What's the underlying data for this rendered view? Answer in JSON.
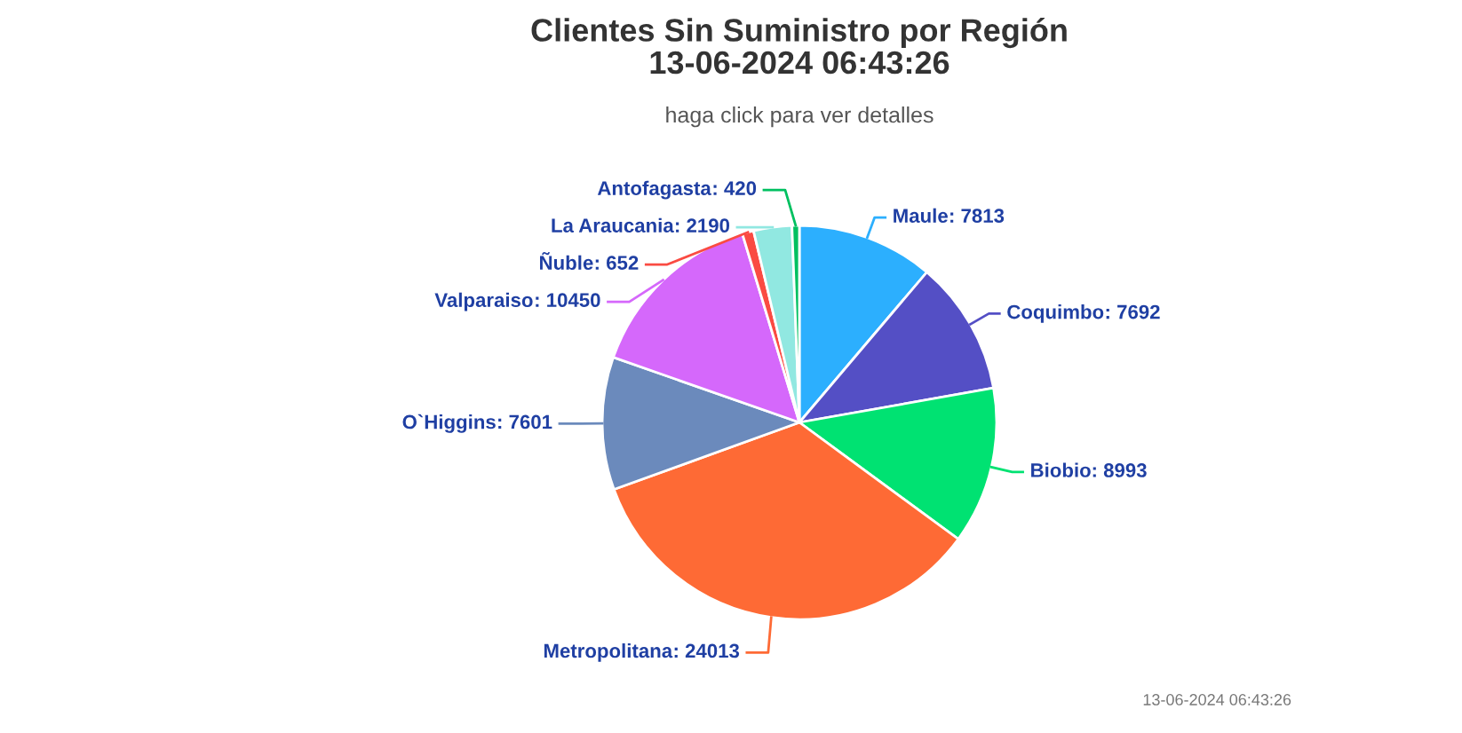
{
  "chart_data": {
    "type": "pie",
    "title": "Clientes Sin Suministro por Región\n13-06-2024 06:43:26",
    "subtitle": "haga click para ver detalles",
    "categories": [
      "Maule",
      "Coquimbo",
      "Biobio",
      "Metropolitana",
      "O`Higgins",
      "Valparaiso",
      "Ñuble",
      "La Araucania",
      "Antofagasta"
    ],
    "values": [
      7813,
      7692,
      8993,
      24013,
      7601,
      10450,
      652,
      2190,
      420
    ],
    "colors": [
      "#2caffe",
      "#544fc5",
      "#00e272",
      "#fe6a35",
      "#6b8abc",
      "#d568fb",
      "#fa4b42",
      "#91e8e1",
      "#00c060"
    ],
    "value_labels": [
      ": 7813",
      ": 7692",
      ": 8993",
      ": 24013",
      ": 7601",
      ": 10450",
      ": 652",
      ": 2190",
      ": 420"
    ],
    "annotations": [
      "13-06-2024 06:43:26"
    ]
  }
}
